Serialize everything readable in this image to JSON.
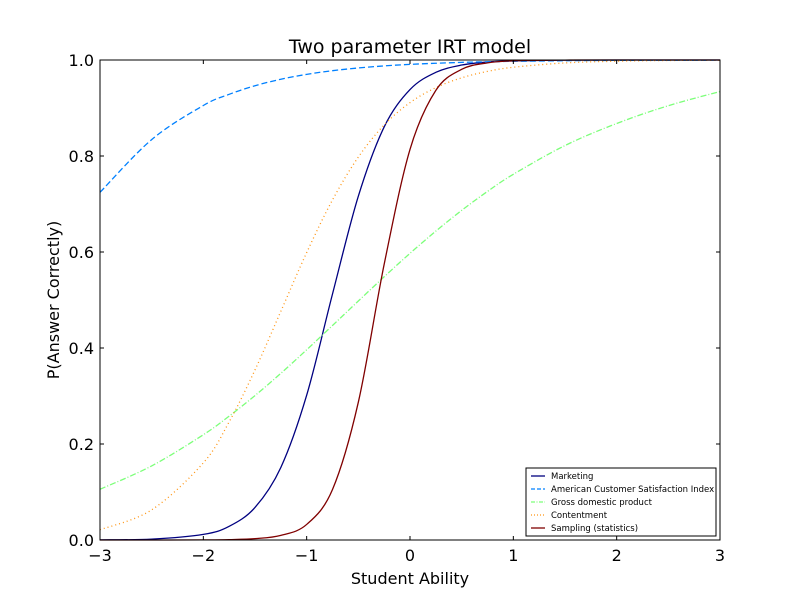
{
  "chart_data": {
    "type": "line",
    "title": "Two parameter IRT model",
    "xlabel": "Student Ability",
    "ylabel": "P(Answer Correctly)",
    "xlim": [
      -3,
      3
    ],
    "ylim": [
      0.0,
      1.0
    ],
    "xticks": [
      -3,
      -2,
      -1,
      0,
      1,
      2,
      3
    ],
    "xtick_labels": [
      "−3",
      "−2",
      "−1",
      "0",
      "1",
      "2",
      "3"
    ],
    "yticks": [
      0.0,
      0.2,
      0.4,
      0.6,
      0.8,
      1.0
    ],
    "ytick_labels": [
      "0.0",
      "0.2",
      "0.4",
      "0.6",
      "0.8",
      "1.0"
    ],
    "grid": false,
    "legend_position": "bottom-right",
    "x": [
      -3.0,
      -2.5,
      -2.0,
      -1.75,
      -1.5,
      -1.25,
      -1.0,
      -0.75,
      -0.5,
      -0.25,
      0.0,
      0.25,
      0.5,
      0.75,
      1.0,
      1.5,
      2.0,
      2.5,
      3.0
    ],
    "series": [
      {
        "name": "Marketing",
        "color": "#000080",
        "dash": "solid",
        "values": [
          0.0003,
          0.0019,
          0.0117,
          0.0285,
          0.0678,
          0.1511,
          0.3016,
          0.5125,
          0.7163,
          0.8606,
          0.9384,
          0.9743,
          0.9895,
          0.9958,
          0.9983,
          0.9997,
          1.0,
          1.0,
          1.0
        ]
      },
      {
        "name": "American Customer Satisfaction Index",
        "color": "#0080ff",
        "dash": "dashed",
        "values": [
          0.7243,
          0.8342,
          0.9052,
          0.9285,
          0.9464,
          0.9599,
          0.9701,
          0.9777,
          0.9834,
          0.9877,
          0.9909,
          0.9932,
          0.995,
          0.9963,
          0.9972,
          0.9985,
          0.9992,
          0.9995,
          0.9997
        ]
      },
      {
        "name": "Gross domestic product",
        "color": "#7cff79",
        "dash": "dashdot",
        "values": [
          0.1056,
          0.1544,
          0.2193,
          0.2581,
          0.3009,
          0.3472,
          0.3963,
          0.4469,
          0.4979,
          0.5484,
          0.5972,
          0.6435,
          0.6867,
          0.7262,
          0.7619,
          0.8218,
          0.8677,
          0.9048,
          0.9343
        ]
      },
      {
        "name": "Contentment",
        "color": "#ff9410",
        "dash": "dotted",
        "values": [
          0.0213,
          0.0628,
          0.1607,
          0.2462,
          0.3543,
          0.4764,
          0.5988,
          0.7085,
          0.7978,
          0.8646,
          0.9112,
          0.9424,
          0.9629,
          0.9763,
          0.9849,
          0.9939,
          0.9975,
          0.999,
          0.9996
        ]
      },
      {
        "name": "Sampling (statistics)",
        "color": "#800000",
        "dash": "solid",
        "values": [
          0.0,
          0.0,
          0.0002,
          0.0008,
          0.0028,
          0.0096,
          0.0324,
          0.1052,
          0.2871,
          0.5744,
          0.8137,
          0.9367,
          0.9805,
          0.9941,
          0.9983,
          0.9998,
          1.0,
          1.0,
          1.0
        ]
      }
    ]
  }
}
